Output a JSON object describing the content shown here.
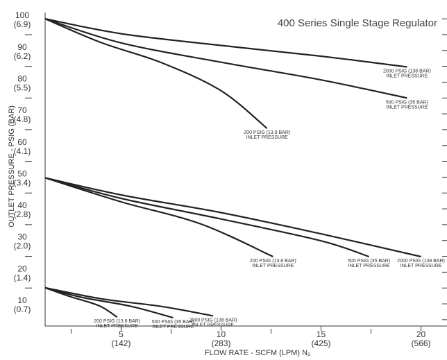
{
  "chart_data": {
    "type": "line",
    "title": "400 Series Single Stage Regulator",
    "xlabel": "FLOW RATE - SCFM (LPM) N₂",
    "ylabel": "OUTLET PRESSURE - PSIG (BAR)",
    "xlim": [
      1.2,
      21.3
    ],
    "ylim": [
      3,
      102
    ],
    "x_ticks": [
      {
        "value": 5,
        "label": "5",
        "sublabel": "(142)"
      },
      {
        "value": 10,
        "label": "10",
        "sublabel": "(283)"
      },
      {
        "value": 15,
        "label": "15",
        "sublabel": "(425)"
      },
      {
        "value": 20,
        "label": "20",
        "sublabel": "(566)"
      }
    ],
    "y_ticks": [
      {
        "value": 100,
        "label": "100",
        "sublabel": "(6.9)"
      },
      {
        "value": 90,
        "label": "90",
        "sublabel": "(6.2)"
      },
      {
        "value": 80,
        "label": "80",
        "sublabel": "(5.5)"
      },
      {
        "value": 70,
        "label": "70",
        "sublabel": "(4.8)"
      },
      {
        "value": 60,
        "label": "60",
        "sublabel": "(4.1)"
      },
      {
        "value": 50,
        "label": "50",
        "sublabel": "(3.4)"
      },
      {
        "value": 40,
        "label": "40",
        "sublabel": "(2.8)"
      },
      {
        "value": 30,
        "label": "30",
        "sublabel": "(2.0)"
      },
      {
        "value": 20,
        "label": "20",
        "sublabel": "(1.4)"
      },
      {
        "value": 10,
        "label": "10",
        "sublabel": "(0.7)"
      }
    ],
    "series": [
      {
        "group": "100",
        "label": [
          "2000 PSIG (138 BAR)",
          "INLET PRESSURE"
        ],
        "x": [
          1.2,
          5,
          10,
          15,
          19.3
        ],
        "y": [
          100,
          95.3,
          91.6,
          88.2,
          84.8
        ]
      },
      {
        "group": "100",
        "label": [
          "500 PSIG (35 BAR)",
          "INLET PRESSURE"
        ],
        "x": [
          1.2,
          5,
          10,
          15,
          19.3
        ],
        "y": [
          100,
          92.4,
          86.3,
          80.7,
          75.0
        ]
      },
      {
        "group": "100",
        "label": [
          "200 PSIG (13.8 BAR)",
          "INLET PRESSURE"
        ],
        "x": [
          1.2,
          4,
          7,
          10,
          12.3
        ],
        "y": [
          100,
          92.5,
          86.2,
          77.3,
          65.4
        ]
      },
      {
        "group": "50",
        "label": [
          "2000 PSIG (138 BAR)",
          "INLET PRESSURE"
        ],
        "x": [
          1.2,
          5,
          10,
          15,
          20
        ],
        "y": [
          49.8,
          44.4,
          38.8,
          32.1,
          24.9
        ]
      },
      {
        "group": "50",
        "label": [
          "500 PSIG (35 BAR)",
          "INLET PRESSURE"
        ],
        "x": [
          1.2,
          5,
          10,
          15,
          17.4
        ],
        "y": [
          49.8,
          43.3,
          36.8,
          29.9,
          24.9
        ]
      },
      {
        "group": "50",
        "label": [
          "200 PSIG (13.8 BAR)",
          "INLET PRESSURE"
        ],
        "x": [
          1.2,
          5,
          9,
          12.6
        ],
        "y": [
          49.8,
          42.2,
          35.2,
          24.9
        ]
      },
      {
        "group": "15",
        "label": [
          "2000 PSIG (138 BAR)",
          "INLET PRESSURE"
        ],
        "x": [
          1.2,
          4,
          7,
          9.6
        ],
        "y": [
          15.1,
          11.6,
          9.2,
          6.2
        ]
      },
      {
        "group": "15",
        "label": [
          "500 PSIG (35 BAR)",
          "INLET PRESSURE"
        ],
        "x": [
          1.2,
          3,
          5.5,
          7.6
        ],
        "y": [
          15.1,
          12.1,
          9.2,
          5.6
        ]
      },
      {
        "group": "15",
        "label": [
          "200 PSIG (13.8 BAR)",
          "INLET PRESSURE"
        ],
        "x": [
          1.2,
          2.5,
          3.9,
          4.8
        ],
        "y": [
          15.1,
          12.2,
          9.4,
          5.8
        ]
      }
    ],
    "grid": false,
    "legend": "none"
  }
}
